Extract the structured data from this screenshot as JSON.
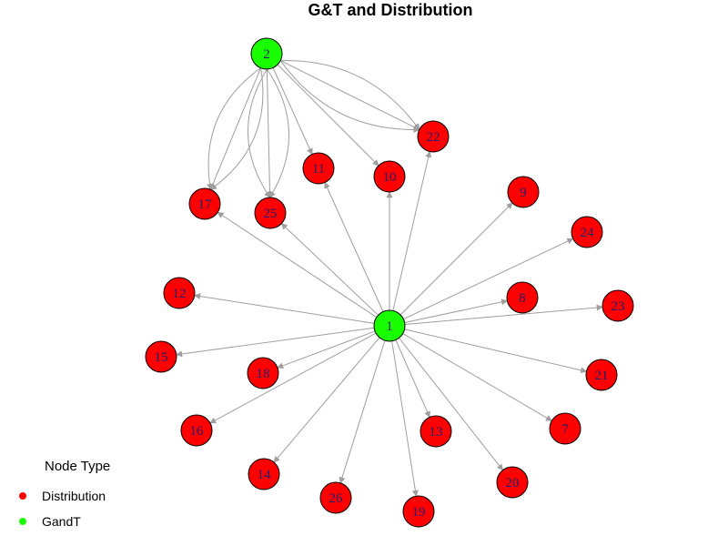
{
  "title": "G&T and Distribution",
  "colors": {
    "GandT": "#1AFF00",
    "Distribution": "#FF0000",
    "edge": "#9E9E9E"
  },
  "legend": {
    "title": "Node Type",
    "items": [
      {
        "label": "Distribution",
        "color": "#FF0000"
      },
      {
        "label": "GandT",
        "color": "#1AFF00"
      }
    ]
  },
  "nodes": [
    {
      "id": "1",
      "type": "GandT"
    },
    {
      "id": "2",
      "type": "GandT"
    },
    {
      "id": "22",
      "type": "Distribution"
    },
    {
      "id": "11",
      "type": "Distribution"
    },
    {
      "id": "10",
      "type": "Distribution"
    },
    {
      "id": "17",
      "type": "Distribution"
    },
    {
      "id": "25",
      "type": "Distribution"
    },
    {
      "id": "9",
      "type": "Distribution"
    },
    {
      "id": "24",
      "type": "Distribution"
    },
    {
      "id": "12",
      "type": "Distribution"
    },
    {
      "id": "8",
      "type": "Distribution"
    },
    {
      "id": "23",
      "type": "Distribution"
    },
    {
      "id": "15",
      "type": "Distribution"
    },
    {
      "id": "18",
      "type": "Distribution"
    },
    {
      "id": "21",
      "type": "Distribution"
    },
    {
      "id": "16",
      "type": "Distribution"
    },
    {
      "id": "13",
      "type": "Distribution"
    },
    {
      "id": "7",
      "type": "Distribution"
    },
    {
      "id": "14",
      "type": "Distribution"
    },
    {
      "id": "20",
      "type": "Distribution"
    },
    {
      "id": "26",
      "type": "Distribution"
    },
    {
      "id": "19",
      "type": "Distribution"
    }
  ],
  "edges": [
    {
      "from": "1",
      "to": "22"
    },
    {
      "from": "1",
      "to": "10"
    },
    {
      "from": "1",
      "to": "11"
    },
    {
      "from": "1",
      "to": "25"
    },
    {
      "from": "1",
      "to": "17"
    },
    {
      "from": "1",
      "to": "9"
    },
    {
      "from": "1",
      "to": "24"
    },
    {
      "from": "1",
      "to": "8"
    },
    {
      "from": "1",
      "to": "23"
    },
    {
      "from": "1",
      "to": "12"
    },
    {
      "from": "1",
      "to": "15"
    },
    {
      "from": "1",
      "to": "18"
    },
    {
      "from": "1",
      "to": "16"
    },
    {
      "from": "1",
      "to": "14"
    },
    {
      "from": "1",
      "to": "26"
    },
    {
      "from": "1",
      "to": "19"
    },
    {
      "from": "1",
      "to": "13"
    },
    {
      "from": "1",
      "to": "20"
    },
    {
      "from": "1",
      "to": "7"
    },
    {
      "from": "1",
      "to": "21"
    },
    {
      "from": "2",
      "to": "11"
    },
    {
      "from": "2",
      "to": "10"
    },
    {
      "from": "2",
      "to": "22"
    },
    {
      "from": "2",
      "to": "22"
    },
    {
      "from": "2",
      "to": "22"
    },
    {
      "from": "2",
      "to": "17"
    },
    {
      "from": "2",
      "to": "17"
    },
    {
      "from": "2",
      "to": "17"
    },
    {
      "from": "2",
      "to": "25"
    },
    {
      "from": "2",
      "to": "25"
    },
    {
      "from": "2",
      "to": "25"
    }
  ]
}
